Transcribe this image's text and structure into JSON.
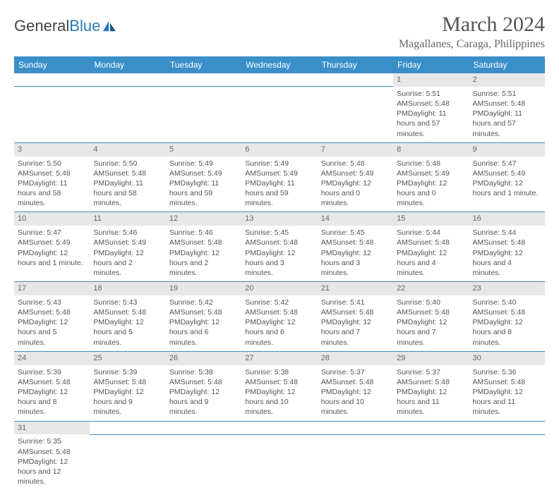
{
  "brand": {
    "name_a": "General",
    "name_b": "Blue"
  },
  "title": "March 2024",
  "location": "Magallanes, Caraga, Philippines",
  "colors": {
    "header_bg": "#3a8fc9",
    "daynum_bg": "#e7e7e7",
    "border": "#3a8fc9",
    "text": "#555555",
    "brand_blue": "#2a7ab9"
  },
  "weekdays": [
    "Sunday",
    "Monday",
    "Tuesday",
    "Wednesday",
    "Thursday",
    "Friday",
    "Saturday"
  ],
  "weeks": [
    {
      "nums": [
        "",
        "",
        "",
        "",
        "",
        "1",
        "2"
      ],
      "cells": [
        null,
        null,
        null,
        null,
        null,
        {
          "sr": "Sunrise: 5:51 AM",
          "ss": "Sunset: 5:48 PM",
          "dl": "Daylight: 11 hours and 57 minutes."
        },
        {
          "sr": "Sunrise: 5:51 AM",
          "ss": "Sunset: 5:48 PM",
          "dl": "Daylight: 11 hours and 57 minutes."
        }
      ]
    },
    {
      "nums": [
        "3",
        "4",
        "5",
        "6",
        "7",
        "8",
        "9"
      ],
      "cells": [
        {
          "sr": "Sunrise: 5:50 AM",
          "ss": "Sunset: 5:48 PM",
          "dl": "Daylight: 11 hours and 58 minutes."
        },
        {
          "sr": "Sunrise: 5:50 AM",
          "ss": "Sunset: 5:48 PM",
          "dl": "Daylight: 11 hours and 58 minutes."
        },
        {
          "sr": "Sunrise: 5:49 AM",
          "ss": "Sunset: 5:49 PM",
          "dl": "Daylight: 11 hours and 59 minutes."
        },
        {
          "sr": "Sunrise: 5:49 AM",
          "ss": "Sunset: 5:49 PM",
          "dl": "Daylight: 11 hours and 59 minutes."
        },
        {
          "sr": "Sunrise: 5:48 AM",
          "ss": "Sunset: 5:49 PM",
          "dl": "Daylight: 12 hours and 0 minutes."
        },
        {
          "sr": "Sunrise: 5:48 AM",
          "ss": "Sunset: 5:49 PM",
          "dl": "Daylight: 12 hours and 0 minutes."
        },
        {
          "sr": "Sunrise: 5:47 AM",
          "ss": "Sunset: 5:49 PM",
          "dl": "Daylight: 12 hours and 1 minute."
        }
      ]
    },
    {
      "nums": [
        "10",
        "11",
        "12",
        "13",
        "14",
        "15",
        "16"
      ],
      "cells": [
        {
          "sr": "Sunrise: 5:47 AM",
          "ss": "Sunset: 5:49 PM",
          "dl": "Daylight: 12 hours and 1 minute."
        },
        {
          "sr": "Sunrise: 5:46 AM",
          "ss": "Sunset: 5:49 PM",
          "dl": "Daylight: 12 hours and 2 minutes."
        },
        {
          "sr": "Sunrise: 5:46 AM",
          "ss": "Sunset: 5:48 PM",
          "dl": "Daylight: 12 hours and 2 minutes."
        },
        {
          "sr": "Sunrise: 5:45 AM",
          "ss": "Sunset: 5:48 PM",
          "dl": "Daylight: 12 hours and 3 minutes."
        },
        {
          "sr": "Sunrise: 5:45 AM",
          "ss": "Sunset: 5:48 PM",
          "dl": "Daylight: 12 hours and 3 minutes."
        },
        {
          "sr": "Sunrise: 5:44 AM",
          "ss": "Sunset: 5:48 PM",
          "dl": "Daylight: 12 hours and 4 minutes."
        },
        {
          "sr": "Sunrise: 5:44 AM",
          "ss": "Sunset: 5:48 PM",
          "dl": "Daylight: 12 hours and 4 minutes."
        }
      ]
    },
    {
      "nums": [
        "17",
        "18",
        "19",
        "20",
        "21",
        "22",
        "23"
      ],
      "cells": [
        {
          "sr": "Sunrise: 5:43 AM",
          "ss": "Sunset: 5:48 PM",
          "dl": "Daylight: 12 hours and 5 minutes."
        },
        {
          "sr": "Sunrise: 5:43 AM",
          "ss": "Sunset: 5:48 PM",
          "dl": "Daylight: 12 hours and 5 minutes."
        },
        {
          "sr": "Sunrise: 5:42 AM",
          "ss": "Sunset: 5:48 PM",
          "dl": "Daylight: 12 hours and 6 minutes."
        },
        {
          "sr": "Sunrise: 5:42 AM",
          "ss": "Sunset: 5:48 PM",
          "dl": "Daylight: 12 hours and 6 minutes."
        },
        {
          "sr": "Sunrise: 5:41 AM",
          "ss": "Sunset: 5:48 PM",
          "dl": "Daylight: 12 hours and 7 minutes."
        },
        {
          "sr": "Sunrise: 5:40 AM",
          "ss": "Sunset: 5:48 PM",
          "dl": "Daylight: 12 hours and 7 minutes."
        },
        {
          "sr": "Sunrise: 5:40 AM",
          "ss": "Sunset: 5:48 PM",
          "dl": "Daylight: 12 hours and 8 minutes."
        }
      ]
    },
    {
      "nums": [
        "24",
        "25",
        "26",
        "27",
        "28",
        "29",
        "30"
      ],
      "cells": [
        {
          "sr": "Sunrise: 5:39 AM",
          "ss": "Sunset: 5:48 PM",
          "dl": "Daylight: 12 hours and 8 minutes."
        },
        {
          "sr": "Sunrise: 5:39 AM",
          "ss": "Sunset: 5:48 PM",
          "dl": "Daylight: 12 hours and 9 minutes."
        },
        {
          "sr": "Sunrise: 5:38 AM",
          "ss": "Sunset: 5:48 PM",
          "dl": "Daylight: 12 hours and 9 minutes."
        },
        {
          "sr": "Sunrise: 5:38 AM",
          "ss": "Sunset: 5:48 PM",
          "dl": "Daylight: 12 hours and 10 minutes."
        },
        {
          "sr": "Sunrise: 5:37 AM",
          "ss": "Sunset: 5:48 PM",
          "dl": "Daylight: 12 hours and 10 minutes."
        },
        {
          "sr": "Sunrise: 5:37 AM",
          "ss": "Sunset: 5:48 PM",
          "dl": "Daylight: 12 hours and 11 minutes."
        },
        {
          "sr": "Sunrise: 5:36 AM",
          "ss": "Sunset: 5:48 PM",
          "dl": "Daylight: 12 hours and 11 minutes."
        }
      ]
    },
    {
      "nums": [
        "31",
        "",
        "",
        "",
        "",
        "",
        ""
      ],
      "cells": [
        {
          "sr": "Sunrise: 5:35 AM",
          "ss": "Sunset: 5:48 PM",
          "dl": "Daylight: 12 hours and 12 minutes."
        },
        null,
        null,
        null,
        null,
        null,
        null
      ]
    }
  ]
}
